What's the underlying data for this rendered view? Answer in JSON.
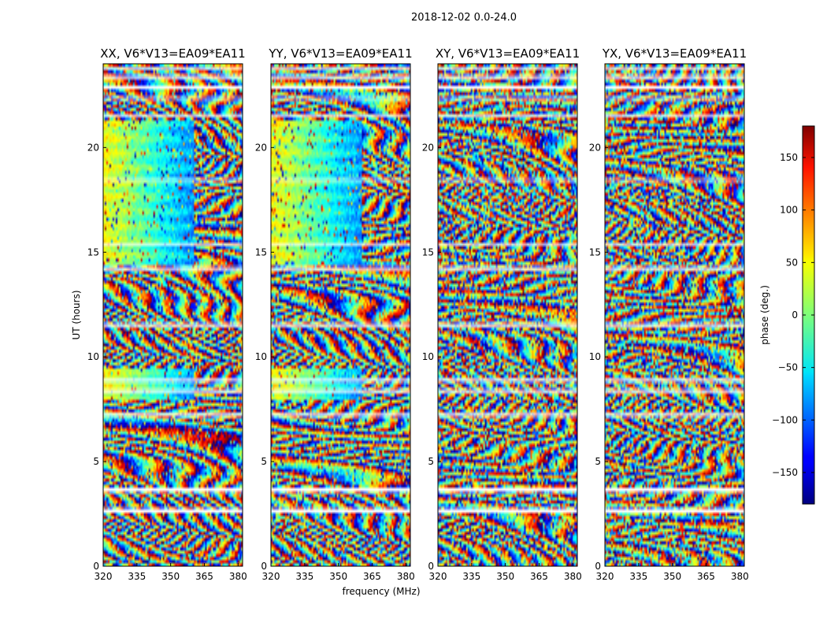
{
  "chart_data": {
    "type": "heatmap",
    "suptitle": "2018-12-02 0.0-24.0",
    "xlabel": "frequency (MHz)",
    "ylabel": "UT (hours)",
    "xlim": [
      320,
      382
    ],
    "ylim": [
      0,
      24
    ],
    "xticks": [
      "320",
      "335",
      "350",
      "365",
      "380"
    ],
    "yticks": [
      "0",
      "5",
      "10",
      "15",
      "20"
    ],
    "panels": [
      {
        "title": "XX, V6*V13=EA09*EA11",
        "pol": "XX"
      },
      {
        "title": "YY, V6*V13=EA09*EA11",
        "pol": "YY"
      },
      {
        "title": "XY, V6*V13=EA09*EA11",
        "pol": "XY"
      },
      {
        "title": "YX, V6*V13=EA09*EA11",
        "pol": "YX"
      }
    ],
    "colorbar": {
      "label": "phase (deg.)",
      "range": [
        -180,
        180
      ],
      "colormap": "jet",
      "ticks": [
        "150",
        "100",
        "50",
        "0",
        "−50",
        "−100",
        "−150"
      ]
    },
    "flagged_hours": [
      [
        2.55,
        2.75
      ],
      [
        3.55,
        3.75
      ],
      [
        7.15,
        7.3
      ],
      [
        8.3,
        8.45
      ],
      [
        8.8,
        8.95
      ],
      [
        11.45,
        11.6
      ],
      [
        14.15,
        14.3
      ],
      [
        15.35,
        15.45
      ],
      [
        18.4,
        18.5
      ],
      [
        21.5,
        21.6
      ],
      [
        22.3,
        22.4
      ],
      [
        22.8,
        22.95
      ],
      [
        23.3,
        23.45
      ],
      [
        23.75,
        23.85
      ]
    ]
  }
}
